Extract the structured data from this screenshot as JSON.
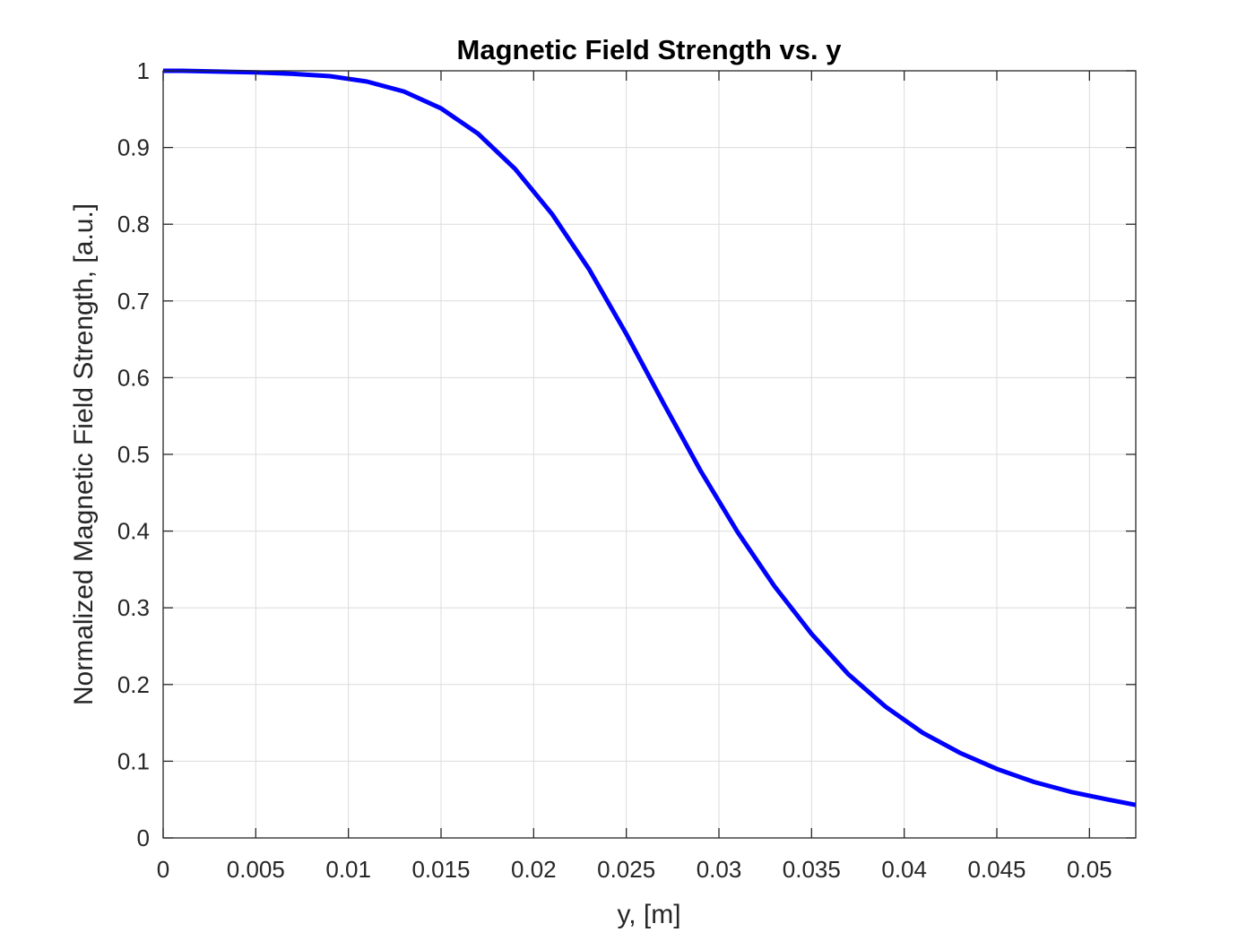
{
  "chart_data": {
    "type": "line",
    "title": "Magnetic Field Strength vs. y",
    "xlabel": "y, [m]",
    "ylabel": "Normalized Magnetic Field Strength, [a.u.]",
    "xlim": [
      0,
      0.0525
    ],
    "ylim": [
      0,
      1
    ],
    "grid": true,
    "xticks": [
      0,
      0.005,
      0.01,
      0.015,
      0.02,
      0.025,
      0.03,
      0.035,
      0.04,
      0.045,
      0.05
    ],
    "xtick_labels": [
      "0",
      "0.005",
      "0.01",
      "0.015",
      "0.02",
      "0.025",
      "0.03",
      "0.035",
      "0.04",
      "0.045",
      "0.05"
    ],
    "yticks": [
      0,
      0.1,
      0.2,
      0.3,
      0.4,
      0.5,
      0.6,
      0.7,
      0.8,
      0.9,
      1
    ],
    "ytick_labels": [
      "0",
      "0.1",
      "0.2",
      "0.3",
      "0.4",
      "0.5",
      "0.6",
      "0.7",
      "0.8",
      "0.9",
      "1"
    ],
    "series": [
      {
        "color": "#0000ff",
        "x": [
          0,
          0.001,
          0.003,
          0.005,
          0.007,
          0.009,
          0.011,
          0.013,
          0.015,
          0.017,
          0.019,
          0.021,
          0.023,
          0.025,
          0.027,
          0.029,
          0.031,
          0.033,
          0.035,
          0.037,
          0.039,
          0.041,
          0.043,
          0.045,
          0.047,
          0.049,
          0.051,
          0.0525
        ],
        "y": [
          1.0,
          1.0,
          0.999,
          0.998,
          0.996,
          0.993,
          0.986,
          0.973,
          0.951,
          0.918,
          0.872,
          0.813,
          0.741,
          0.657,
          0.567,
          0.479,
          0.399,
          0.328,
          0.266,
          0.213,
          0.171,
          0.137,
          0.111,
          0.09,
          0.073,
          0.06,
          0.05,
          0.043
        ]
      }
    ]
  }
}
